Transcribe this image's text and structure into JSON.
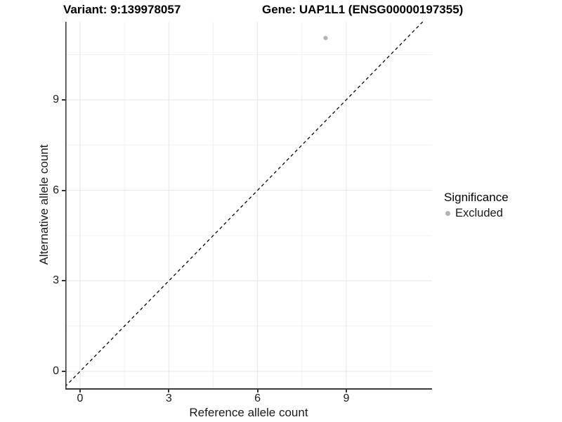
{
  "titles": {
    "variant": "Variant: 9:139978057",
    "gene": "Gene: UAP1L1 (ENSG00000197355)"
  },
  "axes": {
    "x": {
      "label": "Reference allele count",
      "tick_labels": [
        "0",
        "3",
        "6",
        "9"
      ]
    },
    "y": {
      "label": "Alternative allele count",
      "tick_labels": [
        "0",
        "3",
        "6",
        "9"
      ]
    }
  },
  "legend": {
    "title": "Significance",
    "items": [
      {
        "label": "Excluded",
        "color": "#b3b3b3"
      }
    ]
  },
  "chart_data": {
    "type": "scatter",
    "title": "Variant: 9:139978057 | Gene: UAP1L1 (ENSG00000197355)",
    "xlabel": "Reference allele count",
    "ylabel": "Alternative allele count",
    "xlim": [
      -0.5,
      11.9
    ],
    "ylim": [
      -0.6,
      11.6
    ],
    "x_ticks": [
      0,
      3,
      6,
      9
    ],
    "y_ticks": [
      0,
      3,
      6,
      9
    ],
    "minor_grid_step": 1.5,
    "grid": true,
    "legend_position": "right",
    "series": [
      {
        "name": "Excluded",
        "color": "#b3b3b3",
        "points": [
          {
            "x": 8.3,
            "y": 11.05
          }
        ]
      }
    ],
    "reference_line": {
      "type": "identity",
      "slope": 1,
      "intercept": 0,
      "style": "dashed",
      "color": "#000000"
    }
  },
  "colors": {
    "point": "#b3b3b3",
    "grid_major": "#e5e5e5",
    "grid_minor": "#f1f1f1",
    "axis_line": "#3c3c3c",
    "dashed_line": "#000000",
    "text": "#1a1a1a"
  }
}
